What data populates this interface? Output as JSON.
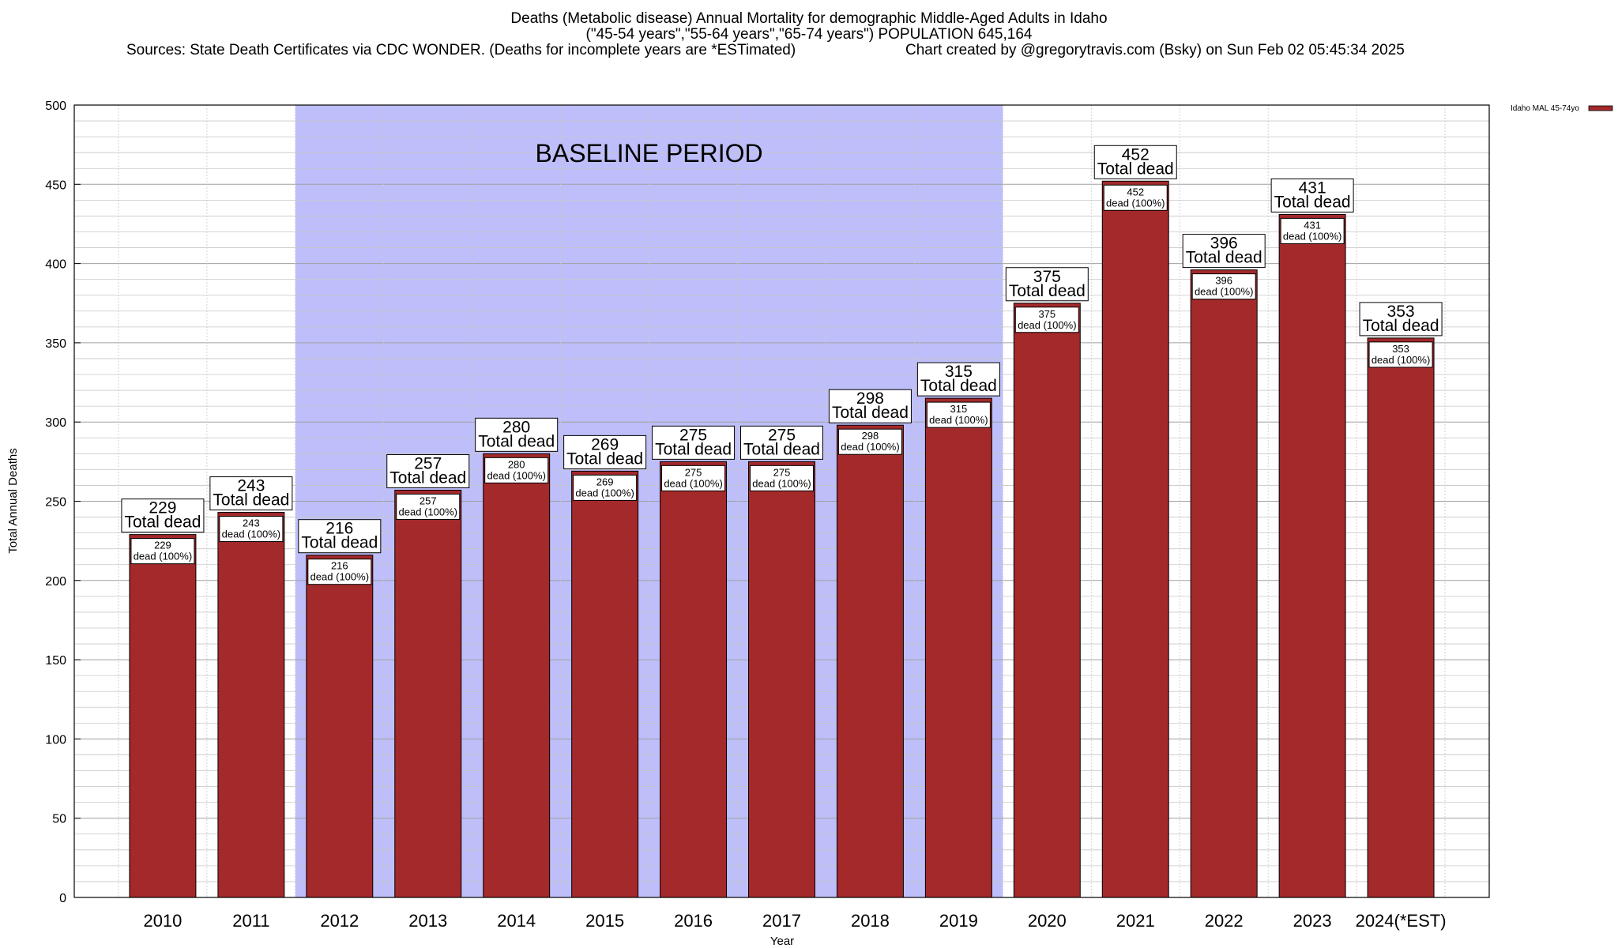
{
  "title": {
    "line1": "Deaths (Metabolic disease) Annual Mortality for demographic Middle-Aged Adults in Idaho",
    "line2": "(\"45-54 years\",\"55-64 years\",\"65-74 years\") POPULATION 645,164",
    "sources": "Sources: State Death Certificates via CDC WONDER. (Deaths for incomplete years are *ESTimated)",
    "credit": "Chart created by @gregorytravis.com (Bsky) on Sun Feb 02 05:45:34 2025"
  },
  "chart_data": {
    "type": "bar",
    "categories": [
      "2010",
      "2011",
      "2012",
      "2013",
      "2014",
      "2015",
      "2016",
      "2017",
      "2018",
      "2019",
      "2020",
      "2021",
      "2022",
      "2023",
      "2024(*EST)"
    ],
    "series": [
      {
        "name": "Idaho MAL 45-74yo",
        "values": [
          229,
          243,
          216,
          257,
          280,
          269,
          275,
          275,
          298,
          315,
          375,
          452,
          396,
          431,
          353
        ]
      }
    ],
    "big_label_suffix": "Total dead",
    "small_label_suffix": "dead (100%)",
    "xlabel": "Year",
    "ylabel": "Total Annual Deaths",
    "ylim": [
      0,
      500
    ],
    "y_ticks": [
      0,
      50,
      100,
      150,
      200,
      250,
      300,
      350,
      400,
      450,
      500
    ],
    "baseline_band": {
      "label": "BASELINE PERIOD",
      "from": "2012",
      "to": "2019"
    },
    "grid": true,
    "legend_placement": "top-right outside",
    "colors": {
      "bar": "#a3292b",
      "band": "#bebefa",
      "grid": "#b4b4b4"
    }
  }
}
